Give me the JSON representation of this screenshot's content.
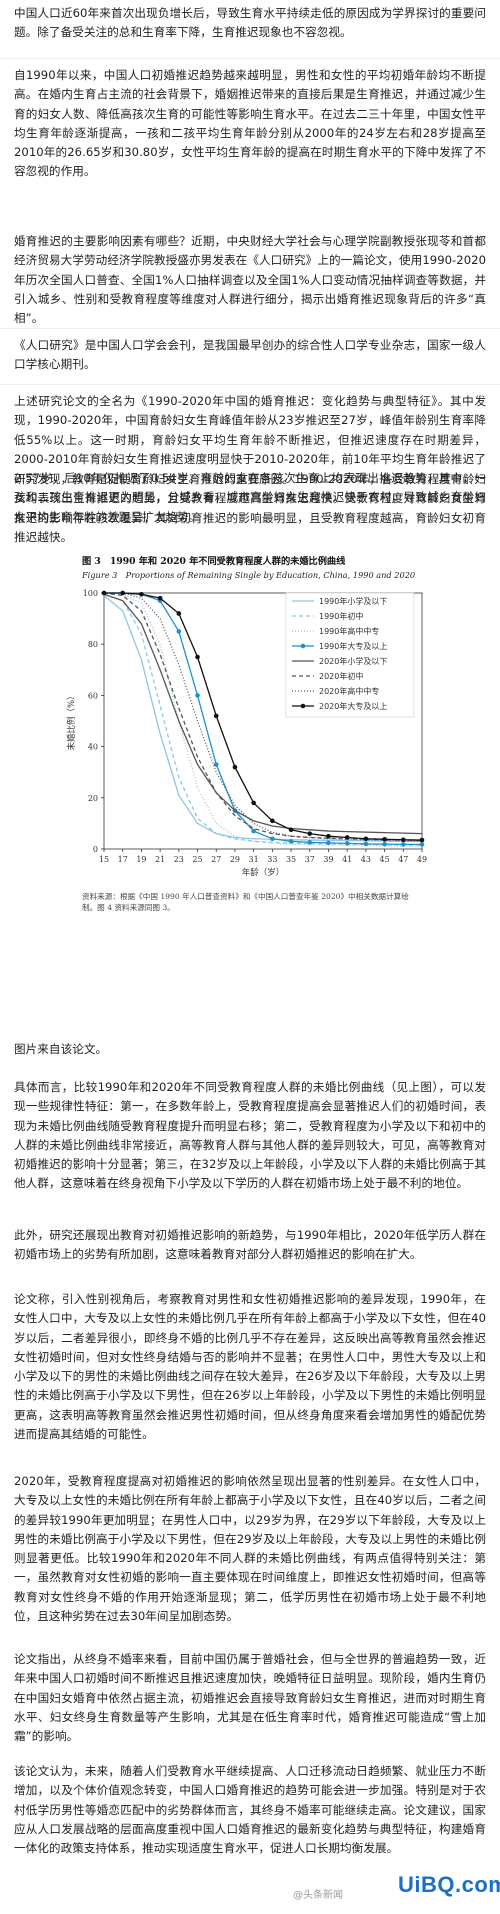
{
  "paragraphs": [
    "中国人口近60年来首次出现负增长后，导致生育水平持续走低的原因成为学界探讨的重要问题。除了备受关注的总和生育率下降，生育推迟现象也不容忽视。",
    "自1990年以来，中国人口初婚推迟趋势越来越明显，男性和女性的平均初婚年龄均不断提高。在婚内生育占主流的社会背景下，婚姻推迟带来的直接后果是生育推迟，并通过减少生育的妇女人数、降低高孩次生育的可能性等影响生育水平。在过去二三十年里，中国女性平均生育年龄逐渐提高，一孩和二孩平均生育年龄分别从2000年的24岁左右和28岁提高至2010年的26.65岁和30.80岁，女性平均生育年龄的提高在时期生育水平的下降中发挥了不容忽视的作用。",
    "婚育推迟的主要影响因素有哪些？近期，中央财经大学社会与心理学院副教授张现苓和首都经济贸易大学劳动经济学院教授盛亦男发表在《人口研究》上的一篇论文，使用1990-2020年历次全国人口普查、全国1%人口抽样调查以及全国1%人口变动情况抽样调查等数据，并引入城乡、性别和受教育程度等维度对人群进行细分，揭示出婚育推迟现象背后的许多“真相”。",
    "《人口研究》是中国人口学会会刊，是我国最早创办的综合性人口学专业杂志，国家一级人口学核心期刊。",
    "上述研究论文的全名为《1990-2020年中国的婚育推迟：变化趋势与典型特征》。其中发现，1990-2020年，中国育龄妇女生育峰值年龄从23岁推迟至27岁，峰值年龄别生育率降低55%以上。这一时期，育龄妇女平均生育年龄不断推迟，但推迟速度存在时期差异，2000-2010年育龄妇女生育推迟速度明显快于2010-2020年，前10年平均生育年龄推迟了2.57岁，后10年仅推迟了0.54岁。育龄妇女在各孩次生育上均表现出推迟趋势，其中，一孩和二孩生育推迟更为明显，分城乡看，城市育龄妇女生育推迟快于农村，导致城乡育龄妇女平均生育年龄的差距呈扩大趋势。",
    "研究发现，教育是促使育龄妇女生育推迟的重要原因。1990-2020年，各受教育程度育龄妇女均表现出生育推迟的趋势，且受教育程度越高生育推迟越快。受教育程度对育龄妇女生育推迟的影响存在孩次差异，其对初育推迟的影响最明显，且受教育程度越高，育龄妇女初育推迟越快。",
    "图片来自该论文。",
    "具体而言，比较1990年和2020年不同受教育程度人群的未婚比例曲线（见上图），可以发现一些规律性特征：第一，在多数年龄上，受教育程度提高会显著推迟人们的初婚时间，表现为未婚比例曲线随受教育程度提升而明显右移；第二，受教育程度为小学及以下和初中的人群的未婚比例曲线非常接近，高等教育人群与其他人群的差异则较大，可见，高等教育对初婚推迟的影响十分显著；第三，在32岁及以上年龄段，小学及以下人群的未婚比例高于其他人群，这意味着在终身视角下小学及以下学历的人群在初婚市场上处于最不利的地位。",
    "此外，研究还展现出教育对初婚推迟影响的新趋势，与1990年相比，2020年低学历人群在初婚市场上的劣势有所加剧，这意味着教育对部分人群初婚推迟的影响在扩大。",
    "论文称，引入性别视角后，考察教育对男性和女性初婚推迟影响的差异发现，1990年，在女性人口中，大专及以上女性的未婚比例几乎在所有年龄上都高于小学及以下女性，但在40岁以后，二者差异很小，即终身不婚的比例几乎不存在差异，这反映出高等教育虽然会推迟女性初婚时间，但对女性终身结婚与否的影响并不显著；在男性人口中，男性大专及以上和小学及以下的男性的未婚比例曲线之间存在较大差异，在26岁及以下年龄段，大专及以上男性的未婚比例高于小学及以下男性，但在26岁以上年龄段，小学及以下男性的未婚比例明显更高，这表明高等教育虽然会推迟男性初婚时间，但从终身角度来看会增加男性的婚配优势进而提高其结婚的可能性。",
    "2020年，受教育程度提高对初婚推迟的影响依然呈现出显著的性别差异。在女性人口中，大专及以上女性的未婚比例在所有年龄上都高于小学及以下女性，且在40岁以后，二者之间的差异较1990年更加明显；在男性人口中，以29岁为界，在29岁以下年龄段，大专及以上男性的未婚比例高于小学及以下男性，但在29岁及以上年龄段，大专及以上男性的未婚比例则显著更低。比较1990年和2020年不同人群的未婚比例曲线，有两点值得特别关注：第一，虽然教育对女性初婚的影响一直主要体现在时间维度上，即推迟女性初婚时间，但高等教育对女性终身不婚的作用开始逐渐显现；第二，低学历男性在初婚市场上处于最不利地位，且这种劣势在过去30年间呈加剧态势。",
    "论文指出，从终身不婚率来看，目前中国仍属于普婚社会，但与全世界的普遍趋势一致，近年来中国人口初婚时间不断推迟且推迟速度加快，晚婚特征日益明显。现阶段，婚内生育仍在中国妇女婚育中依然占据主流，初婚推迟会直接导致育龄妇女生育推迟，进而对时期生育水平、妇女终身生育数量等产生影响，尤其是在低生育率时代，婚育推迟可能造成“雪上加霜”的影响。",
    "该论文认为，未来，随着人们受教育水平继续提高、人口迁移流动日趋频繁、就业压力不断增加，以及个体价值观念转变，中国人口婚育推迟的趋势可能会进一步加强。特别是对于农村低学历男性等婚恋匹配中的劣势群体而言，其终身不婚率可能继续走高。论文建议，国家应从人口发展战略的层面高度重视中国人口婚育推迟的最新变化趋势与典型特征，构建婚育一体化的政策支持体系，推动实现适度生育水平，促进人口长期均衡发展。"
  ],
  "figure": {
    "title": "图 3　1990 年和 2020 年不同受教育程度人群的未婚比例曲线",
    "subtitle": "Figure 3　Proportions of Remaining Single by Education, China, 1990 and 2020",
    "source": "资料来源：根据《中国 1990 年人口普查资料》和《中国人口普查年鉴 2020》中相关数据计算绘制。图 4 资料来源同图 3。"
  },
  "chart_data": {
    "type": "line",
    "title": "图 3　1990 年和 2020 年不同受教育程度人群的未婚比例曲线",
    "subtitle": "Figure 3　Proportions of Remaining Single by Education, China, 1990 and 2020",
    "xlabel": "年龄（岁）",
    "ylabel": "未婚比例（%）",
    "xlim": [
      15,
      49
    ],
    "ylim": [
      0,
      100
    ],
    "xticks": [
      "15",
      "17",
      "19",
      "21",
      "23",
      "25",
      "27",
      "29",
      "31",
      "33",
      "35",
      "37",
      "39",
      "41",
      "43",
      "45",
      "47",
      "49"
    ],
    "yticks": [
      "0",
      "20",
      "40",
      "60",
      "80",
      "100"
    ],
    "x": [
      15,
      17,
      19,
      21,
      23,
      25,
      27,
      29,
      31,
      33,
      35,
      37,
      39,
      41,
      43,
      45,
      47,
      49
    ],
    "series": [
      {
        "name": "1990年小学及以下",
        "color": "#8ec6e8",
        "dash": "",
        "marker": "",
        "values": [
          99,
          93,
          74,
          45,
          21,
          10,
          6,
          4.5,
          4,
          3.8,
          3.6,
          3.5,
          3.4,
          3.3,
          3.2,
          3.1,
          3,
          3
        ]
      },
      {
        "name": "1990年初中",
        "color": "#8ec6e8",
        "dash": "4,3",
        "marker": "",
        "values": [
          99.5,
          97,
          84,
          56,
          28,
          12,
          6,
          4,
          3,
          2.6,
          2.3,
          2.1,
          2,
          1.9,
          1.8,
          1.7,
          1.6,
          1.5
        ]
      },
      {
        "name": "1990年高中中专",
        "color": "#8ec6e8",
        "dash": "1,2",
        "marker": "",
        "values": [
          100,
          99.5,
          96,
          80,
          50,
          24,
          10,
          5,
          3,
          2.2,
          1.8,
          1.6,
          1.5,
          1.4,
          1.3,
          1.2,
          1.1,
          1
        ]
      },
      {
        "name": "1990年大专及以上",
        "color": "#1f8fd0",
        "dash": "",
        "marker": "circle",
        "values": [
          100,
          100,
          99.5,
          97,
          85,
          60,
          33,
          15,
          7,
          4,
          3,
          2.6,
          2.4,
          2.2,
          2,
          1.9,
          1.8,
          1.8
        ]
      },
      {
        "name": "2020年小学及以下",
        "color": "#555555",
        "dash": "",
        "marker": "",
        "values": [
          99.5,
          97,
          88,
          70,
          50,
          33,
          22,
          15,
          11,
          9,
          8,
          7.5,
          7,
          6.8,
          6.6,
          6.4,
          6.2,
          6
        ]
      },
      {
        "name": "2020年初中",
        "color": "#555555",
        "dash": "4,3",
        "marker": "",
        "values": [
          100,
          99,
          93,
          76,
          55,
          36,
          22,
          13,
          8,
          6,
          5,
          4.5,
          4.2,
          4,
          3.8,
          3.6,
          3.5,
          3.4
        ]
      },
      {
        "name": "2020年高中中专",
        "color": "#555555",
        "dash": "1,2",
        "marker": "",
        "values": [
          100,
          100,
          98,
          90,
          72,
          50,
          30,
          17,
          10,
          6.5,
          5,
          4.5,
          4,
          3.8,
          3.6,
          3.4,
          3.2,
          3
        ]
      },
      {
        "name": "2020年大专及以上",
        "color": "#111111",
        "dash": "",
        "marker": "circle",
        "values": [
          100,
          100,
          99.5,
          98,
          92,
          75,
          52,
          32,
          18,
          11,
          7.5,
          6,
          5,
          4.5,
          4,
          3.8,
          3.6,
          3.5
        ]
      }
    ],
    "legend_position": "top-right",
    "grid": false
  },
  "footer": {
    "watermark": "@头条新闻",
    "logo_main": "UiBQ",
    "logo_sub": ".com"
  }
}
